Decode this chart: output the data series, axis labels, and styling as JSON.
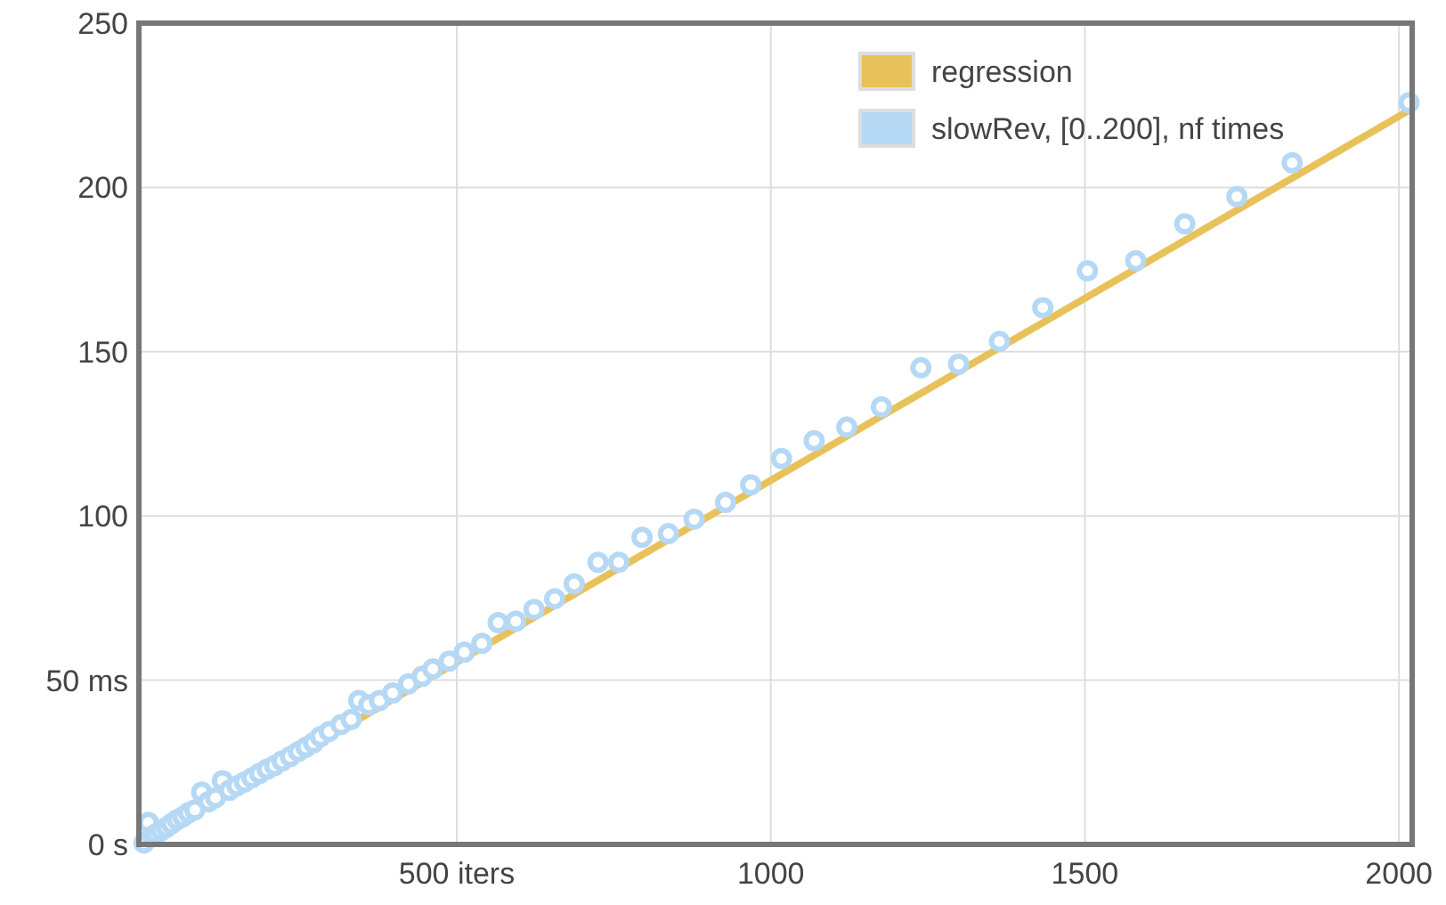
{
  "chart_data": {
    "type": "scatter",
    "xlim": [
      -6,
      2021
    ],
    "xticks": [
      {
        "value": 500,
        "label": "500 iters"
      },
      1000,
      1500,
      2000
    ],
    "ylim": [
      0,
      250
    ],
    "yticks": [
      {
        "value": 0,
        "label": "0 s"
      },
      {
        "value": 50,
        "label": "50 ms"
      },
      100,
      150,
      200,
      250
    ],
    "grid": true,
    "legend": "top right",
    "series": [
      {
        "name": "regression",
        "type": "line",
        "marker": "none",
        "color": "#e8c15a",
        "x": [
          0,
          2021
        ],
        "values": [
          0,
          224
        ]
      },
      {
        "name": "slowRev, [0..200], nf times",
        "marker": "circle",
        "color": "#b5d8f5",
        "x": [
          2,
          9,
          15,
          22,
          30,
          38,
          46,
          55,
          64,
          73,
          83,
          94,
          105,
          116,
          127,
          138,
          150,
          162,
          174,
          186,
          198,
          210,
          222,
          235,
          248,
          260,
          272,
          283,
          297,
          316,
          332,
          344,
          360,
          377,
          398,
          423,
          445,
          462,
          488,
          512,
          540,
          566,
          594,
          623,
          656,
          687,
          725,
          758,
          795,
          837,
          878,
          928,
          968,
          1017,
          1069,
          1121,
          1176,
          1239,
          1299,
          1364,
          1433,
          1504,
          1581,
          1659,
          1742,
          1830,
          2016
        ],
        "values": [
          0.5,
          6.7,
          2.5,
          3.3,
          4.3,
          5.2,
          6.3,
          7.5,
          8.4,
          9.6,
          10.5,
          15.9,
          13.0,
          14.2,
          19.4,
          16.5,
          17.8,
          19.0,
          20.3,
          21.6,
          22.9,
          24.0,
          25.4,
          26.8,
          28.3,
          29.6,
          31.0,
          32.8,
          34.4,
          36.5,
          38.0,
          43.8,
          42.5,
          43.8,
          46.1,
          48.9,
          51.2,
          53.4,
          55.8,
          58.5,
          61.2,
          67.5,
          67.9,
          71.5,
          74.8,
          79.3,
          85.9,
          85.9,
          93.5,
          94.6,
          99.0,
          104.1,
          109.5,
          117.5,
          122.9,
          127.0,
          133.2,
          145.1,
          146.2,
          153.1,
          163.4,
          174.6,
          177.7,
          188.9,
          197.2,
          207.5,
          225.8
        ]
      }
    ]
  }
}
